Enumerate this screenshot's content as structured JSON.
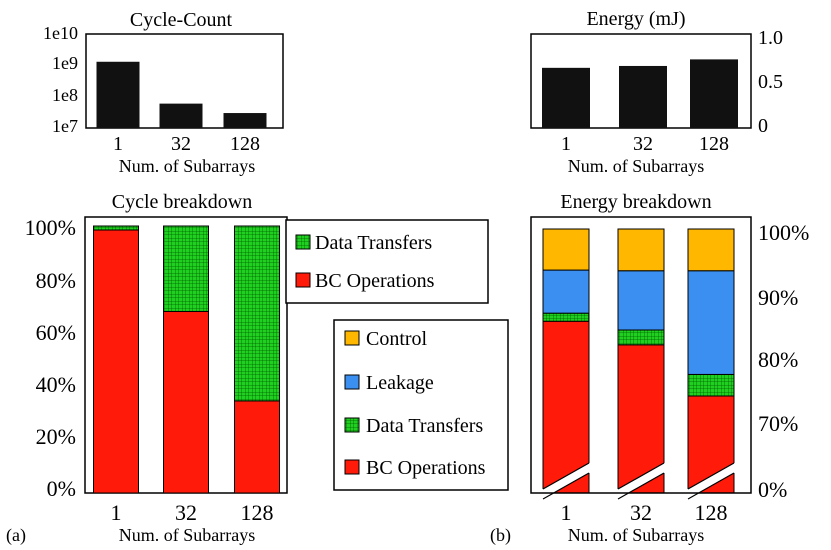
{
  "colors": {
    "bar": "#111111",
    "bc": "#ff1a0a",
    "dt": "#20d020",
    "dt_grid": "#005a00",
    "leak": "#3b8ff0",
    "ctrl": "#ffb700"
  },
  "chart_data": [
    {
      "id": "cycle_count",
      "type": "bar",
      "title": "Cycle-Count",
      "xlabel": "Num. of Subarrays",
      "ylabel": "",
      "scale": "log",
      "categories": [
        "1",
        "32",
        "128"
      ],
      "values": [
        1300000000,
        60000000,
        30000000
      ],
      "yticks": [
        "1e7",
        "1e8",
        "1e9",
        "1e10"
      ],
      "ylim": [
        10000000,
        10000000000
      ]
    },
    {
      "id": "energy",
      "type": "bar",
      "title": "Energy (mJ)",
      "xlabel": "Num. of Subarrays",
      "ylabel": "",
      "categories": [
        "1",
        "32",
        "128"
      ],
      "values": [
        0.64,
        0.66,
        0.73
      ],
      "yticks": [
        "0",
        "0.5",
        "1.0"
      ],
      "ylim": [
        0,
        1.0
      ]
    },
    {
      "id": "cycle_breakdown",
      "type": "bar",
      "stacked": true,
      "title": "Cycle breakdown",
      "panel_label": "(a)",
      "xlabel": "Num. of Subarrays",
      "categories": [
        "1",
        "32",
        "128"
      ],
      "ylim": [
        0,
        100
      ],
      "yticks": [
        "0%",
        "20%",
        "40%",
        "60%",
        "80%",
        "100%"
      ],
      "legend": "top-right",
      "legend_labels": [
        "Data Transfers",
        "BC Operations"
      ],
      "series": [
        {
          "name": "BC Operations",
          "values": [
            98.5,
            68,
            34.5
          ]
        },
        {
          "name": "Data Transfers",
          "values": [
            1.5,
            32,
            65.5
          ]
        }
      ]
    },
    {
      "id": "energy_breakdown",
      "type": "bar",
      "stacked": true,
      "broken_axis": true,
      "title": "Energy breakdown",
      "panel_label": "(b)",
      "xlabel": "Num. of Subarrays",
      "categories": [
        "1",
        "32",
        "128"
      ],
      "ylim": [
        0,
        100
      ],
      "yticks": [
        "0%",
        "70%",
        "80%",
        "90%",
        "100%"
      ],
      "legend": "left",
      "legend_labels": [
        "Control",
        "Leakage",
        "Data Transfers",
        "BC Operations"
      ],
      "series": [
        {
          "name": "BC Operations",
          "values": [
            86.3,
            82.8,
            75.2
          ]
        },
        {
          "name": "Data Transfers",
          "values": [
            1.2,
            2.2,
            3.2
          ]
        },
        {
          "name": "Leakage",
          "values": [
            6.4,
            8.8,
            15.4
          ]
        },
        {
          "name": "Control",
          "values": [
            6.1,
            6.2,
            6.2
          ]
        }
      ]
    }
  ]
}
